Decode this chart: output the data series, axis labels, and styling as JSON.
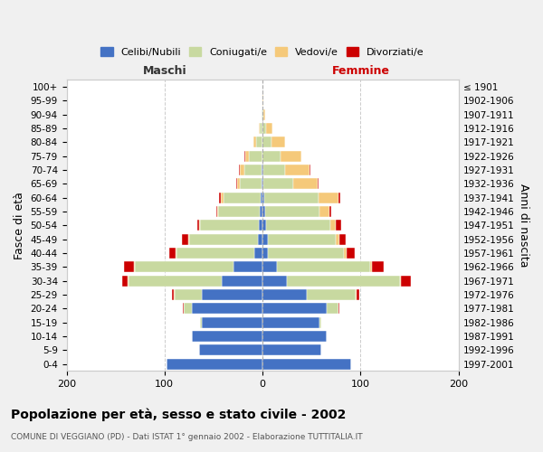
{
  "age_groups": [
    "0-4",
    "5-9",
    "10-14",
    "15-19",
    "20-24",
    "25-29",
    "30-34",
    "35-39",
    "40-44",
    "45-49",
    "50-54",
    "55-59",
    "60-64",
    "65-69",
    "70-74",
    "75-79",
    "80-84",
    "85-89",
    "90-94",
    "95-99",
    "100+"
  ],
  "birth_years": [
    "1997-2001",
    "1992-1996",
    "1987-1991",
    "1982-1986",
    "1977-1981",
    "1972-1976",
    "1967-1971",
    "1962-1966",
    "1957-1961",
    "1952-1956",
    "1947-1951",
    "1942-1946",
    "1937-1941",
    "1932-1936",
    "1927-1931",
    "1922-1926",
    "1917-1921",
    "1912-1916",
    "1907-1911",
    "1902-1906",
    "≤ 1901"
  ],
  "male": {
    "celibi": [
      98,
      65,
      72,
      62,
      72,
      62,
      42,
      30,
      8,
      5,
      4,
      3,
      2,
      1,
      1,
      0,
      0,
      0,
      0,
      0,
      0
    ],
    "coniugati": [
      0,
      0,
      0,
      2,
      8,
      28,
      95,
      100,
      80,
      70,
      60,
      42,
      38,
      22,
      18,
      14,
      7,
      3,
      1,
      0,
      0
    ],
    "vedovi": [
      0,
      0,
      0,
      0,
      0,
      1,
      1,
      1,
      1,
      1,
      1,
      1,
      3,
      3,
      4,
      4,
      2,
      1,
      0,
      0,
      0
    ],
    "divorziati": [
      0,
      0,
      0,
      0,
      1,
      1,
      5,
      10,
      6,
      6,
      2,
      1,
      1,
      1,
      1,
      1,
      0,
      0,
      0,
      0,
      0
    ]
  },
  "female": {
    "nubili": [
      90,
      60,
      65,
      58,
      65,
      45,
      25,
      15,
      5,
      5,
      4,
      3,
      2,
      1,
      1,
      0,
      0,
      0,
      0,
      0,
      0
    ],
    "coniugate": [
      0,
      0,
      0,
      2,
      12,
      50,
      115,
      95,
      78,
      70,
      65,
      55,
      55,
      30,
      22,
      18,
      9,
      4,
      1,
      0,
      0
    ],
    "vedove": [
      0,
      0,
      0,
      0,
      0,
      1,
      1,
      2,
      3,
      3,
      6,
      10,
      20,
      25,
      25,
      22,
      14,
      6,
      2,
      1,
      0
    ],
    "divorziate": [
      0,
      0,
      0,
      0,
      1,
      3,
      10,
      12,
      8,
      7,
      5,
      2,
      2,
      1,
      1,
      0,
      0,
      0,
      0,
      0,
      0
    ]
  },
  "colors": {
    "celibi_nubili": "#4472c4",
    "coniugati": "#c8d9a0",
    "vedovi": "#f5c97a",
    "divorziati": "#cc0000"
  },
  "xlim": [
    -200,
    200
  ],
  "xticks": [
    -200,
    -100,
    0,
    100,
    200
  ],
  "xticklabels": [
    "200",
    "100",
    "0",
    "100",
    "200"
  ],
  "title": "Popolazione per età, sesso e stato civile - 2002",
  "subtitle": "COMUNE DI VEGGIANO (PD) - Dati ISTAT 1° gennaio 2002 - Elaborazione TUTTITALIA.IT",
  "ylabel_left": "Fasce di età",
  "ylabel_right": "Anni di nascita",
  "label_maschi": "Maschi",
  "label_femmine": "Femmine",
  "legend_labels": [
    "Celibi/Nubili",
    "Coniugati/e",
    "Vedovi/e",
    "Divorziati/e"
  ],
  "background_color": "#f0f0f0",
  "plot_bg": "#ffffff"
}
